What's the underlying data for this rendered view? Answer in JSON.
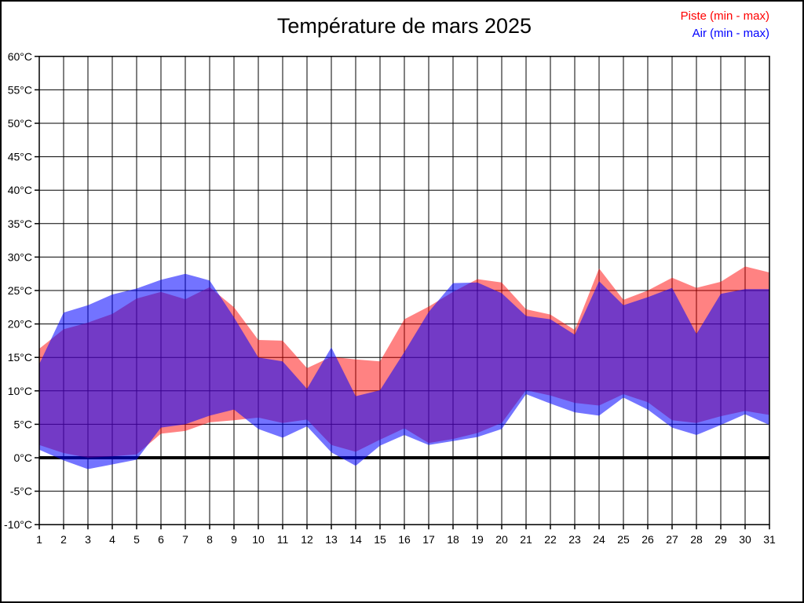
{
  "title": "Température de mars 2025",
  "legend": [
    {
      "label": "Piste (min - max)",
      "color": "#FF0000"
    },
    {
      "label": "Air (min - max)",
      "color": "#0000FF"
    }
  ],
  "chart_data": {
    "type": "area",
    "title": "Température de mars 2025",
    "xlabel": "",
    "ylabel": "",
    "x": [
      1,
      2,
      3,
      4,
      5,
      6,
      7,
      8,
      9,
      10,
      11,
      12,
      13,
      14,
      15,
      16,
      17,
      18,
      19,
      20,
      21,
      22,
      23,
      24,
      25,
      26,
      27,
      28,
      29,
      30,
      31
    ],
    "ylim": [
      -10,
      60
    ],
    "yticks": [
      60,
      55,
      50,
      45,
      40,
      35,
      30,
      25,
      20,
      15,
      10,
      5,
      0,
      -5,
      -10
    ],
    "ytick_labels": [
      "60°C",
      "55°C",
      "50°C",
      "45°C",
      "40°C",
      "35°C",
      "30°C",
      "25°C",
      "20°C",
      "15°C",
      "10°C",
      "5°C",
      "0°C",
      "-5°C",
      "-10°C"
    ],
    "grid": true,
    "zero_line": true,
    "legend_position": "top-right",
    "series": [
      {
        "name": "Piste (min - max)",
        "legend_color": "#FF0000",
        "fill": "rgba(255,0,0,0.49)",
        "max": [
          16.3,
          19.2,
          20.2,
          21.5,
          23.8,
          24.8,
          23.7,
          25.5,
          22.5,
          17.6,
          17.5,
          13.4,
          15.1,
          14.7,
          14.4,
          20.7,
          22.6,
          24.8,
          26.7,
          26.2,
          22.2,
          21.4,
          19.1,
          28.3,
          23.6,
          25.0,
          26.9,
          25.4,
          26.3,
          28.6,
          27.7
        ],
        "min": [
          1.9,
          0.7,
          0.0,
          0.2,
          0.5,
          3.6,
          4.0,
          5.3,
          5.6,
          6.0,
          5.2,
          5.7,
          1.9,
          0.9,
          2.7,
          4.4,
          2.2,
          2.8,
          3.7,
          5.2,
          10.1,
          9.3,
          8.2,
          7.8,
          9.5,
          8.3,
          5.6,
          5.2,
          6.2,
          7.0,
          6.4
        ]
      },
      {
        "name": "Air (min - max)",
        "legend_color": "#0000FF",
        "fill": "rgba(0,0,255,0.55)",
        "max": [
          14.0,
          21.7,
          22.8,
          24.4,
          25.3,
          26.6,
          27.5,
          26.5,
          21.0,
          15.0,
          14.4,
          10.3,
          16.5,
          9.2,
          10.1,
          15.8,
          21.8,
          26.1,
          26.2,
          24.6,
          21.2,
          20.7,
          18.4,
          26.4,
          22.8,
          24.0,
          25.4,
          18.5,
          24.5,
          25.2,
          25.2
        ],
        "min": [
          1.2,
          -0.4,
          -1.7,
          -1.0,
          -0.3,
          4.5,
          5.0,
          6.3,
          7.2,
          4.3,
          3.0,
          4.7,
          0.8,
          -1.2,
          1.8,
          3.4,
          1.9,
          2.5,
          3.1,
          4.3,
          9.5,
          8.1,
          6.8,
          6.3,
          9.0,
          7.2,
          4.5,
          3.4,
          4.9,
          6.5,
          4.9
        ]
      }
    ]
  }
}
